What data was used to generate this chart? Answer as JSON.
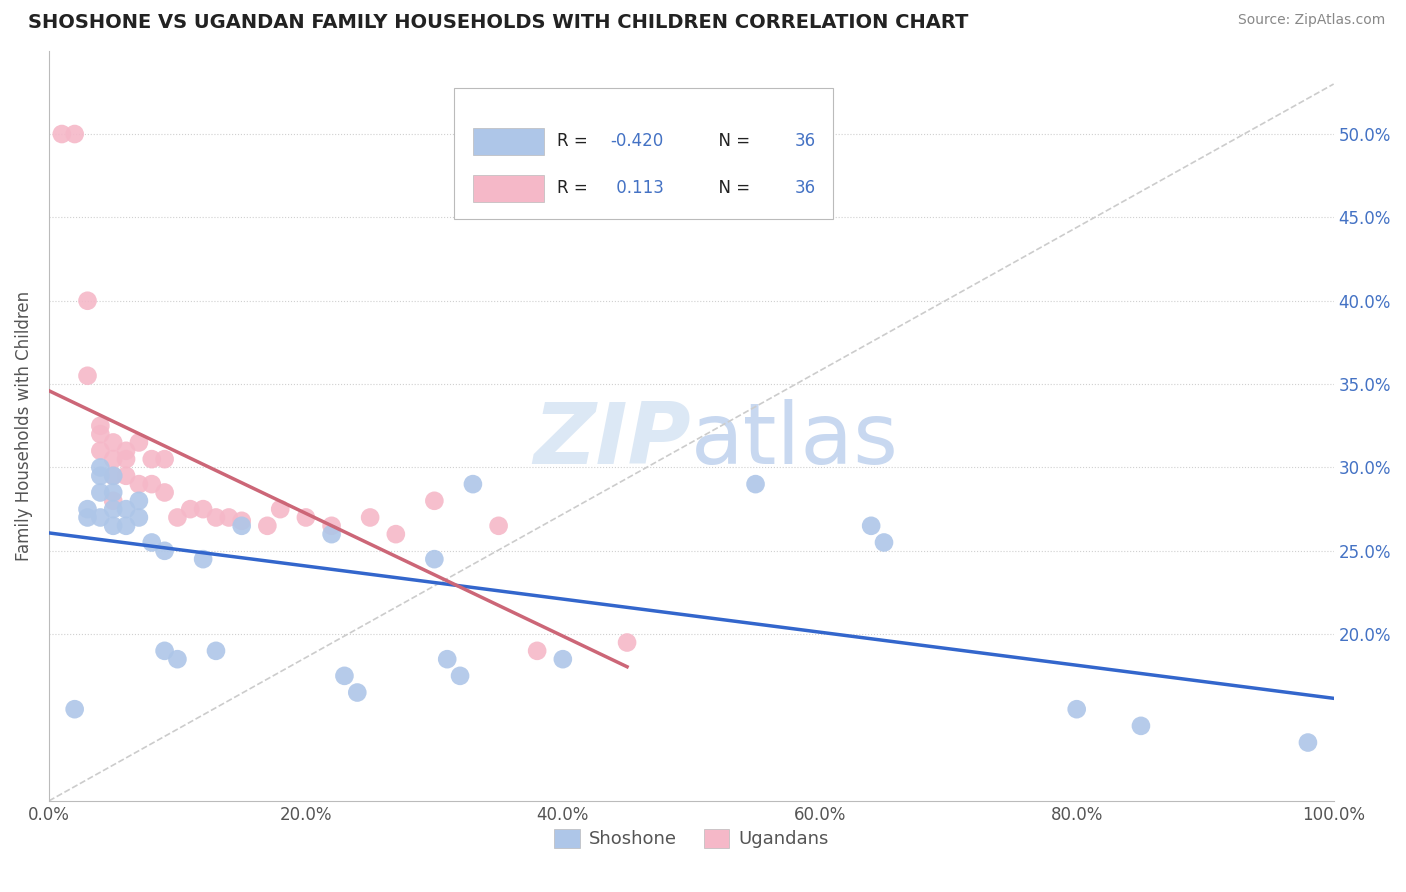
{
  "title": "SHOSHONE VS UGANDAN FAMILY HOUSEHOLDS WITH CHILDREN CORRELATION CHART",
  "source": "Source: ZipAtlas.com",
  "ylabel": "Family Households with Children",
  "xlim": [
    0.0,
    1.0
  ],
  "ylim": [
    0.1,
    0.55
  ],
  "xticks": [
    0.0,
    0.2,
    0.4,
    0.6,
    0.8,
    1.0
  ],
  "xtick_labels": [
    "0.0%",
    "20.0%",
    "40.0%",
    "60.0%",
    "80.0%",
    "100.0%"
  ],
  "yticks_right": [
    0.2,
    0.25,
    0.3,
    0.35,
    0.4,
    0.45,
    0.5
  ],
  "ytick_labels_right": [
    "20.0%",
    "25.0%",
    "30.0%",
    "35.0%",
    "40.0%",
    "45.0%",
    "50.0%"
  ],
  "shoshone_r": -0.42,
  "ugandan_r": 0.113,
  "n": 36,
  "shoshone_color": "#aec6e8",
  "ugandan_color": "#f5b8c8",
  "shoshone_line_color": "#3366cc",
  "ugandan_line_color": "#cc6677",
  "grid_color": "#d0d0d0",
  "background_color": "#ffffff",
  "title_color": "#222222",
  "watermark_color": "#dce8f5",
  "shoshone_x": [
    0.02,
    0.03,
    0.03,
    0.04,
    0.04,
    0.04,
    0.04,
    0.05,
    0.05,
    0.05,
    0.05,
    0.06,
    0.06,
    0.07,
    0.07,
    0.08,
    0.09,
    0.09,
    0.1,
    0.12,
    0.13,
    0.15,
    0.22,
    0.23,
    0.24,
    0.3,
    0.31,
    0.32,
    0.33,
    0.4,
    0.55,
    0.64,
    0.65,
    0.8,
    0.85,
    0.98
  ],
  "shoshone_y": [
    0.155,
    0.27,
    0.275,
    0.285,
    0.3,
    0.295,
    0.27,
    0.275,
    0.285,
    0.295,
    0.265,
    0.275,
    0.265,
    0.27,
    0.28,
    0.255,
    0.25,
    0.19,
    0.185,
    0.245,
    0.19,
    0.265,
    0.26,
    0.175,
    0.165,
    0.245,
    0.185,
    0.175,
    0.29,
    0.185,
    0.29,
    0.265,
    0.255,
    0.155,
    0.145,
    0.135
  ],
  "ugandan_x": [
    0.01,
    0.02,
    0.03,
    0.03,
    0.04,
    0.04,
    0.04,
    0.05,
    0.05,
    0.05,
    0.05,
    0.06,
    0.06,
    0.06,
    0.07,
    0.07,
    0.08,
    0.08,
    0.09,
    0.09,
    0.1,
    0.11,
    0.12,
    0.13,
    0.14,
    0.15,
    0.17,
    0.18,
    0.2,
    0.22,
    0.25,
    0.27,
    0.3,
    0.35,
    0.38,
    0.45
  ],
  "ugandan_y": [
    0.5,
    0.5,
    0.4,
    0.355,
    0.325,
    0.32,
    0.31,
    0.315,
    0.305,
    0.295,
    0.28,
    0.31,
    0.305,
    0.295,
    0.315,
    0.29,
    0.305,
    0.29,
    0.305,
    0.285,
    0.27,
    0.275,
    0.275,
    0.27,
    0.27,
    0.268,
    0.265,
    0.275,
    0.27,
    0.265,
    0.27,
    0.26,
    0.28,
    0.265,
    0.19,
    0.195
  ]
}
